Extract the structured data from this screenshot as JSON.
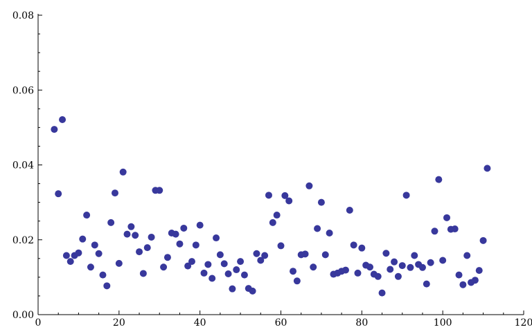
{
  "chart_data": {
    "type": "scatter",
    "title": "",
    "xlabel": "",
    "ylabel": "",
    "xlim": [
      0,
      120
    ],
    "ylim": [
      0,
      0.08
    ],
    "x_ticks": [
      0,
      20,
      40,
      60,
      80,
      100,
      120
    ],
    "y_ticks": [
      0.0,
      0.02,
      0.04,
      0.06,
      0.08
    ],
    "x_tick_labels": [
      "0",
      "20",
      "40",
      "60",
      "80",
      "100",
      "120"
    ],
    "y_tick_labels": [
      "0.00",
      "0.02",
      "0.04",
      "0.06",
      "0.08"
    ],
    "grid": false,
    "point_color": "#38389c",
    "series": [
      {
        "points": [
          [
            4,
            0.0495
          ],
          [
            5,
            0.0323
          ],
          [
            6,
            0.0521
          ],
          [
            7,
            0.0158
          ],
          [
            8,
            0.0142
          ],
          [
            9,
            0.0158
          ],
          [
            10,
            0.0165
          ],
          [
            11,
            0.0202
          ],
          [
            12,
            0.0266
          ],
          [
            13,
            0.0127
          ],
          [
            14,
            0.0186
          ],
          [
            15,
            0.0163
          ],
          [
            16,
            0.0106
          ],
          [
            17,
            0.0077
          ],
          [
            18,
            0.0246
          ],
          [
            19,
            0.0325
          ],
          [
            20,
            0.0137
          ],
          [
            21,
            0.0381
          ],
          [
            22,
            0.0215
          ],
          [
            23,
            0.0235
          ],
          [
            24,
            0.0212
          ],
          [
            25,
            0.0168
          ],
          [
            26,
            0.011
          ],
          [
            27,
            0.0179
          ],
          [
            28,
            0.0207
          ],
          [
            29,
            0.0332
          ],
          [
            30,
            0.0332
          ],
          [
            31,
            0.0127
          ],
          [
            32,
            0.0153
          ],
          [
            33,
            0.0218
          ],
          [
            34,
            0.0215
          ],
          [
            35,
            0.0189
          ],
          [
            36,
            0.0231
          ],
          [
            37,
            0.013
          ],
          [
            38,
            0.0142
          ],
          [
            39,
            0.0186
          ],
          [
            40,
            0.0239
          ],
          [
            41,
            0.0111
          ],
          [
            42,
            0.0134
          ],
          [
            43,
            0.0097
          ],
          [
            44,
            0.0205
          ],
          [
            45,
            0.016
          ],
          [
            46,
            0.0136
          ],
          [
            47,
            0.0109
          ],
          [
            48,
            0.0069
          ],
          [
            49,
            0.012
          ],
          [
            50,
            0.0142
          ],
          [
            51,
            0.0106
          ],
          [
            52,
            0.007
          ],
          [
            53,
            0.0063
          ],
          [
            54,
            0.0163
          ],
          [
            55,
            0.0145
          ],
          [
            56,
            0.0158
          ],
          [
            57,
            0.0319
          ],
          [
            58,
            0.0246
          ],
          [
            59,
            0.0266
          ],
          [
            60,
            0.0184
          ],
          [
            61,
            0.0318
          ],
          [
            62,
            0.0304
          ],
          [
            63,
            0.0116
          ],
          [
            64,
            0.009
          ],
          [
            65,
            0.016
          ],
          [
            66,
            0.0162
          ],
          [
            67,
            0.0344
          ],
          [
            68,
            0.0127
          ],
          [
            69,
            0.023
          ],
          [
            70,
            0.03
          ],
          [
            71,
            0.016
          ],
          [
            72,
            0.0218
          ],
          [
            73,
            0.0108
          ],
          [
            74,
            0.0111
          ],
          [
            75,
            0.0116
          ],
          [
            76,
            0.0119
          ],
          [
            77,
            0.0279
          ],
          [
            78,
            0.0186
          ],
          [
            79,
            0.0111
          ],
          [
            80,
            0.0178
          ],
          [
            81,
            0.0132
          ],
          [
            82,
            0.0127
          ],
          [
            83,
            0.0108
          ],
          [
            84,
            0.0102
          ],
          [
            85,
            0.0058
          ],
          [
            86,
            0.0164
          ],
          [
            87,
            0.0121
          ],
          [
            88,
            0.0141
          ],
          [
            89,
            0.0102
          ],
          [
            90,
            0.0131
          ],
          [
            91,
            0.0319
          ],
          [
            92,
            0.0126
          ],
          [
            93,
            0.0158
          ],
          [
            94,
            0.0134
          ],
          [
            95,
            0.0126
          ],
          [
            96,
            0.0082
          ],
          [
            97,
            0.0139
          ],
          [
            98,
            0.0223
          ],
          [
            99,
            0.0361
          ],
          [
            100,
            0.0145
          ],
          [
            101,
            0.0259
          ],
          [
            102,
            0.0228
          ],
          [
            103,
            0.0229
          ],
          [
            104,
            0.0106
          ],
          [
            105,
            0.008
          ],
          [
            106,
            0.0158
          ],
          [
            107,
            0.0086
          ],
          [
            108,
            0.0092
          ],
          [
            109,
            0.0118
          ],
          [
            110,
            0.0198
          ],
          [
            111,
            0.0391
          ]
        ]
      }
    ]
  }
}
